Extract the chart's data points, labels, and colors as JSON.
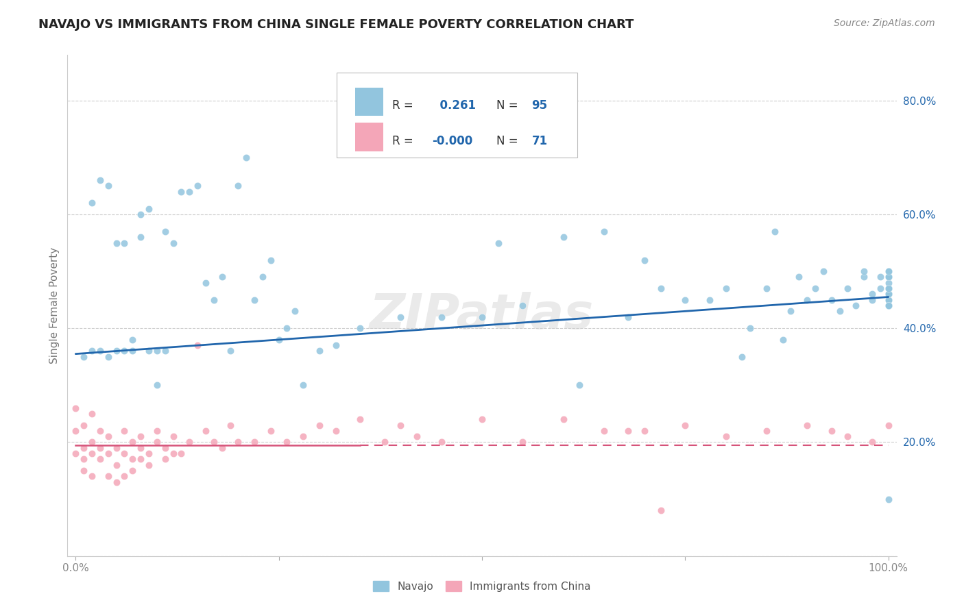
{
  "title": "NAVAJO VS IMMIGRANTS FROM CHINA SINGLE FEMALE POVERTY CORRELATION CHART",
  "source": "Source: ZipAtlas.com",
  "ylabel": "Single Female Poverty",
  "legend_label1": "Navajo",
  "legend_label2": "Immigrants from China",
  "R1": 0.261,
  "N1": 95,
  "R2": -0.0,
  "N2": 71,
  "blue_color": "#92c5de",
  "pink_color": "#f4a6b8",
  "trend_blue": "#2166ac",
  "trend_pink": "#d6547a",
  "watermark": "ZIPatlas",
  "navajo_x": [
    0.01,
    0.02,
    0.02,
    0.03,
    0.03,
    0.04,
    0.04,
    0.05,
    0.05,
    0.06,
    0.06,
    0.07,
    0.07,
    0.08,
    0.08,
    0.09,
    0.09,
    0.1,
    0.1,
    0.11,
    0.11,
    0.12,
    0.13,
    0.14,
    0.15,
    0.16,
    0.17,
    0.18,
    0.19,
    0.2,
    0.21,
    0.22,
    0.23,
    0.24,
    0.25,
    0.26,
    0.27,
    0.28,
    0.3,
    0.32,
    0.35,
    0.4,
    0.45,
    0.5,
    0.52,
    0.55,
    0.6,
    0.62,
    0.65,
    0.68,
    0.7,
    0.72,
    0.75,
    0.78,
    0.8,
    0.82,
    0.83,
    0.85,
    0.86,
    0.87,
    0.88,
    0.89,
    0.9,
    0.91,
    0.92,
    0.93,
    0.94,
    0.95,
    0.96,
    0.97,
    0.97,
    0.98,
    0.98,
    0.99,
    0.99,
    1.0,
    1.0,
    1.0,
    1.0,
    1.0,
    1.0,
    1.0,
    1.0,
    1.0,
    1.0,
    1.0,
    1.0,
    1.0,
    1.0,
    1.0,
    1.0,
    1.0,
    1.0,
    1.0,
    1.0
  ],
  "navajo_y": [
    0.35,
    0.36,
    0.62,
    0.36,
    0.66,
    0.35,
    0.65,
    0.36,
    0.55,
    0.36,
    0.55,
    0.36,
    0.38,
    0.56,
    0.6,
    0.61,
    0.36,
    0.3,
    0.36,
    0.57,
    0.36,
    0.55,
    0.64,
    0.64,
    0.65,
    0.48,
    0.45,
    0.49,
    0.36,
    0.65,
    0.7,
    0.45,
    0.49,
    0.52,
    0.38,
    0.4,
    0.43,
    0.3,
    0.36,
    0.37,
    0.4,
    0.42,
    0.42,
    0.42,
    0.55,
    0.44,
    0.56,
    0.3,
    0.57,
    0.42,
    0.52,
    0.47,
    0.45,
    0.45,
    0.47,
    0.35,
    0.4,
    0.47,
    0.57,
    0.38,
    0.43,
    0.49,
    0.45,
    0.47,
    0.5,
    0.45,
    0.43,
    0.47,
    0.44,
    0.49,
    0.5,
    0.45,
    0.46,
    0.47,
    0.49,
    0.44,
    0.46,
    0.49,
    0.46,
    0.45,
    0.44,
    0.46,
    0.49,
    0.46,
    0.47,
    0.45,
    0.5,
    0.47,
    0.44,
    0.48,
    0.46,
    0.47,
    0.49,
    0.5,
    0.1
  ],
  "china_x": [
    0.0,
    0.0,
    0.0,
    0.01,
    0.01,
    0.01,
    0.01,
    0.02,
    0.02,
    0.02,
    0.02,
    0.03,
    0.03,
    0.03,
    0.04,
    0.04,
    0.04,
    0.05,
    0.05,
    0.05,
    0.06,
    0.06,
    0.06,
    0.07,
    0.07,
    0.07,
    0.08,
    0.08,
    0.08,
    0.09,
    0.09,
    0.1,
    0.1,
    0.11,
    0.11,
    0.12,
    0.12,
    0.13,
    0.14,
    0.15,
    0.16,
    0.17,
    0.18,
    0.19,
    0.2,
    0.22,
    0.24,
    0.26,
    0.28,
    0.3,
    0.32,
    0.35,
    0.38,
    0.4,
    0.42,
    0.45,
    0.5,
    0.55,
    0.6,
    0.65,
    0.7,
    0.75,
    0.8,
    0.85,
    0.9,
    0.93,
    0.95,
    0.98,
    1.0,
    0.68,
    0.72
  ],
  "china_y": [
    0.18,
    0.22,
    0.26,
    0.17,
    0.19,
    0.15,
    0.23,
    0.2,
    0.18,
    0.25,
    0.14,
    0.19,
    0.22,
    0.17,
    0.18,
    0.21,
    0.14,
    0.19,
    0.16,
    0.13,
    0.22,
    0.18,
    0.14,
    0.2,
    0.17,
    0.15,
    0.19,
    0.21,
    0.17,
    0.18,
    0.16,
    0.2,
    0.22,
    0.19,
    0.17,
    0.21,
    0.18,
    0.18,
    0.2,
    0.37,
    0.22,
    0.2,
    0.19,
    0.23,
    0.2,
    0.2,
    0.22,
    0.2,
    0.21,
    0.23,
    0.22,
    0.24,
    0.2,
    0.23,
    0.21,
    0.2,
    0.24,
    0.2,
    0.24,
    0.22,
    0.22,
    0.23,
    0.21,
    0.22,
    0.23,
    0.22,
    0.21,
    0.2,
    0.23,
    0.22,
    0.08
  ],
  "ylim": [
    0.0,
    0.88
  ],
  "xlim": [
    -0.01,
    1.01
  ],
  "yticks": [
    0.0,
    0.2,
    0.4,
    0.6,
    0.8
  ],
  "ytick_labels": [
    "",
    "20.0%",
    "40.0%",
    "60.0%",
    "80.0%"
  ],
  "xticks": [
    0.0,
    0.25,
    0.5,
    0.75,
    1.0
  ],
  "xtick_labels": [
    "0.0%",
    "",
    "",
    "",
    "100.0%"
  ],
  "blue_trend_start_x": 0.0,
  "blue_trend_end_x": 1.0,
  "blue_trend_start_y": 0.355,
  "blue_trend_end_y": 0.455,
  "pink_trend_y": 0.195,
  "background_color": "#ffffff",
  "grid_color": "#cccccc",
  "title_fontsize": 13,
  "source_fontsize": 10,
  "tick_fontsize": 11,
  "ylabel_fontsize": 11
}
